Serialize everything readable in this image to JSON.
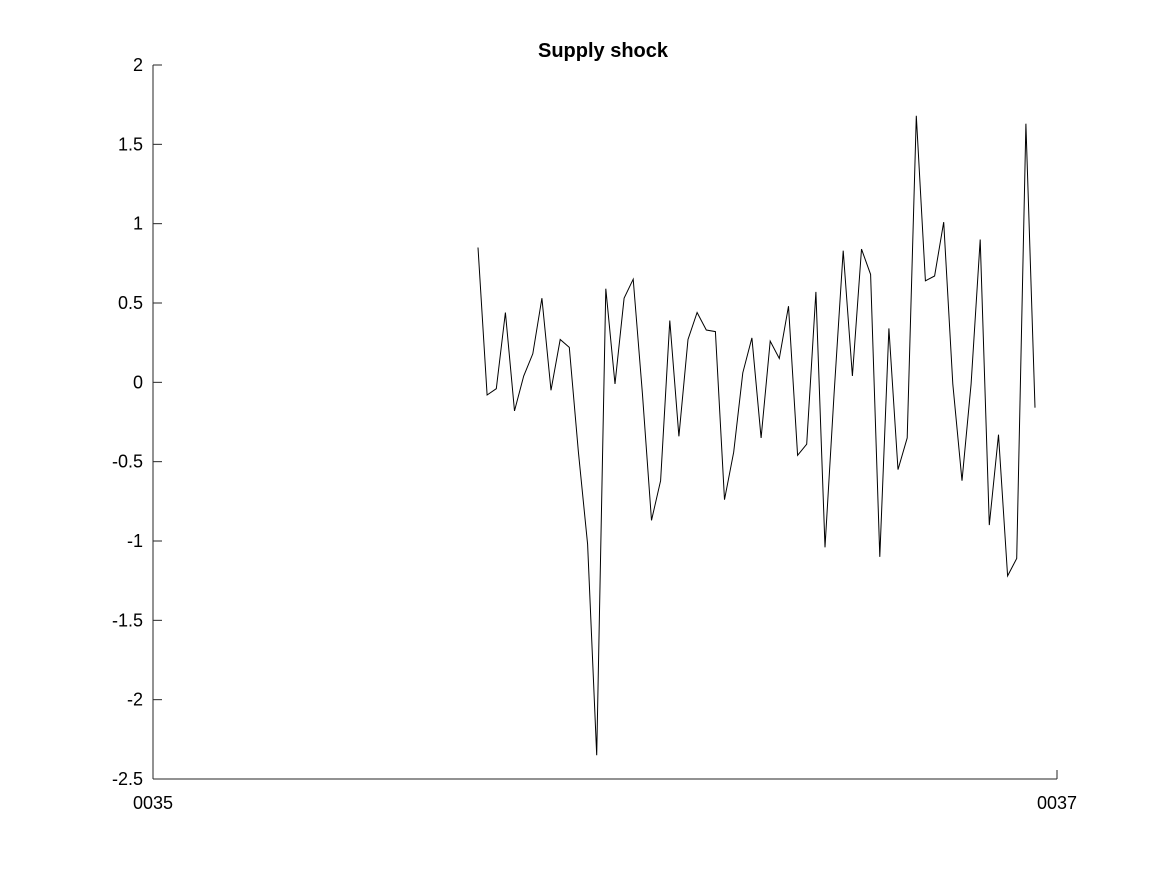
{
  "chart_data": {
    "type": "line",
    "title": "Supply shock",
    "xlabel": "",
    "ylabel": "",
    "xlim": [
      "0035",
      "0037"
    ],
    "ylim": [
      -2.5,
      2
    ],
    "x_tick_labels": [
      "0035",
      "0037"
    ],
    "y_ticks": [
      2,
      1.5,
      1,
      0.5,
      0,
      -0.5,
      -1,
      -1.5,
      -2,
      -2.5
    ],
    "y_tick_labels": [
      "2",
      "1.5",
      "1",
      "0.5",
      "0",
      "-0.5",
      "-1",
      "-1.5",
      "-2",
      "-2.5"
    ],
    "grid": false,
    "line_color": "#000000",
    "series": [
      {
        "values": [
          0.85,
          -0.08,
          -0.04,
          0.44,
          -0.18,
          0.04,
          0.18,
          0.53,
          -0.05,
          0.27,
          0.22,
          -0.44,
          -1.02,
          -2.35,
          0.59,
          -0.01,
          0.53,
          0.65,
          -0.07,
          -0.87,
          -0.62,
          0.39,
          -0.34,
          0.27,
          0.44,
          0.33,
          0.32,
          -0.74,
          -0.44,
          0.06,
          0.28,
          -0.35,
          0.26,
          0.15,
          0.48,
          -0.46,
          -0.39,
          0.57,
          -1.04,
          -0.07,
          0.83,
          0.04,
          0.84,
          0.68,
          -1.1,
          0.34,
          -0.55,
          -0.35,
          1.68,
          0.64,
          0.67,
          1.01,
          -0.01,
          -0.62,
          -0.01,
          0.9,
          -0.9,
          -0.33,
          -1.22,
          -1.11,
          1.63,
          -0.16
        ]
      }
    ]
  }
}
